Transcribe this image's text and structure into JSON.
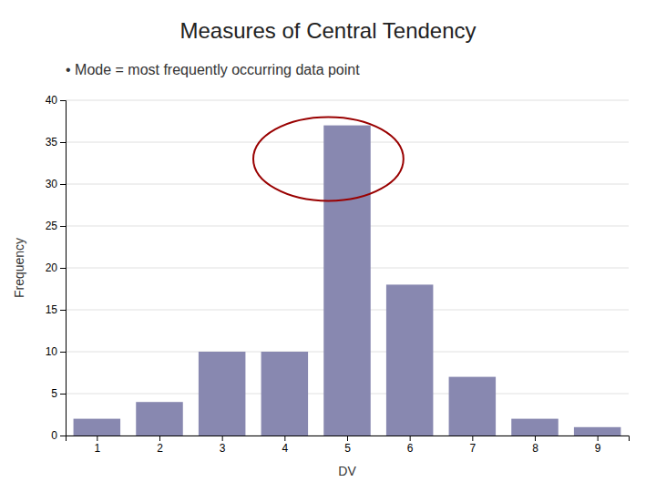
{
  "chart_data": {
    "type": "bar",
    "title": "Measures of Central Tendency",
    "annotation": "• Mode = most frequently occurring data point",
    "x": [
      1,
      2,
      3,
      4,
      5,
      6,
      7,
      8,
      9
    ],
    "values": [
      2,
      4,
      10,
      10,
      37,
      18,
      7,
      2,
      1
    ],
    "color": "#8888b0",
    "xlabel": "DV",
    "ylabel": "Frequency",
    "xlim": [
      0.5,
      9.5
    ],
    "xticks": [
      1,
      2,
      3,
      4,
      5,
      6,
      7,
      8,
      9
    ],
    "ylim": [
      0,
      40
    ],
    "yticks": [
      0,
      5,
      10,
      15,
      20,
      25,
      30,
      35,
      40
    ],
    "grid": true,
    "highlight": {
      "x": 4.7,
      "y": 33,
      "rx": 1.2,
      "ry": 5,
      "color": "#990000"
    }
  }
}
